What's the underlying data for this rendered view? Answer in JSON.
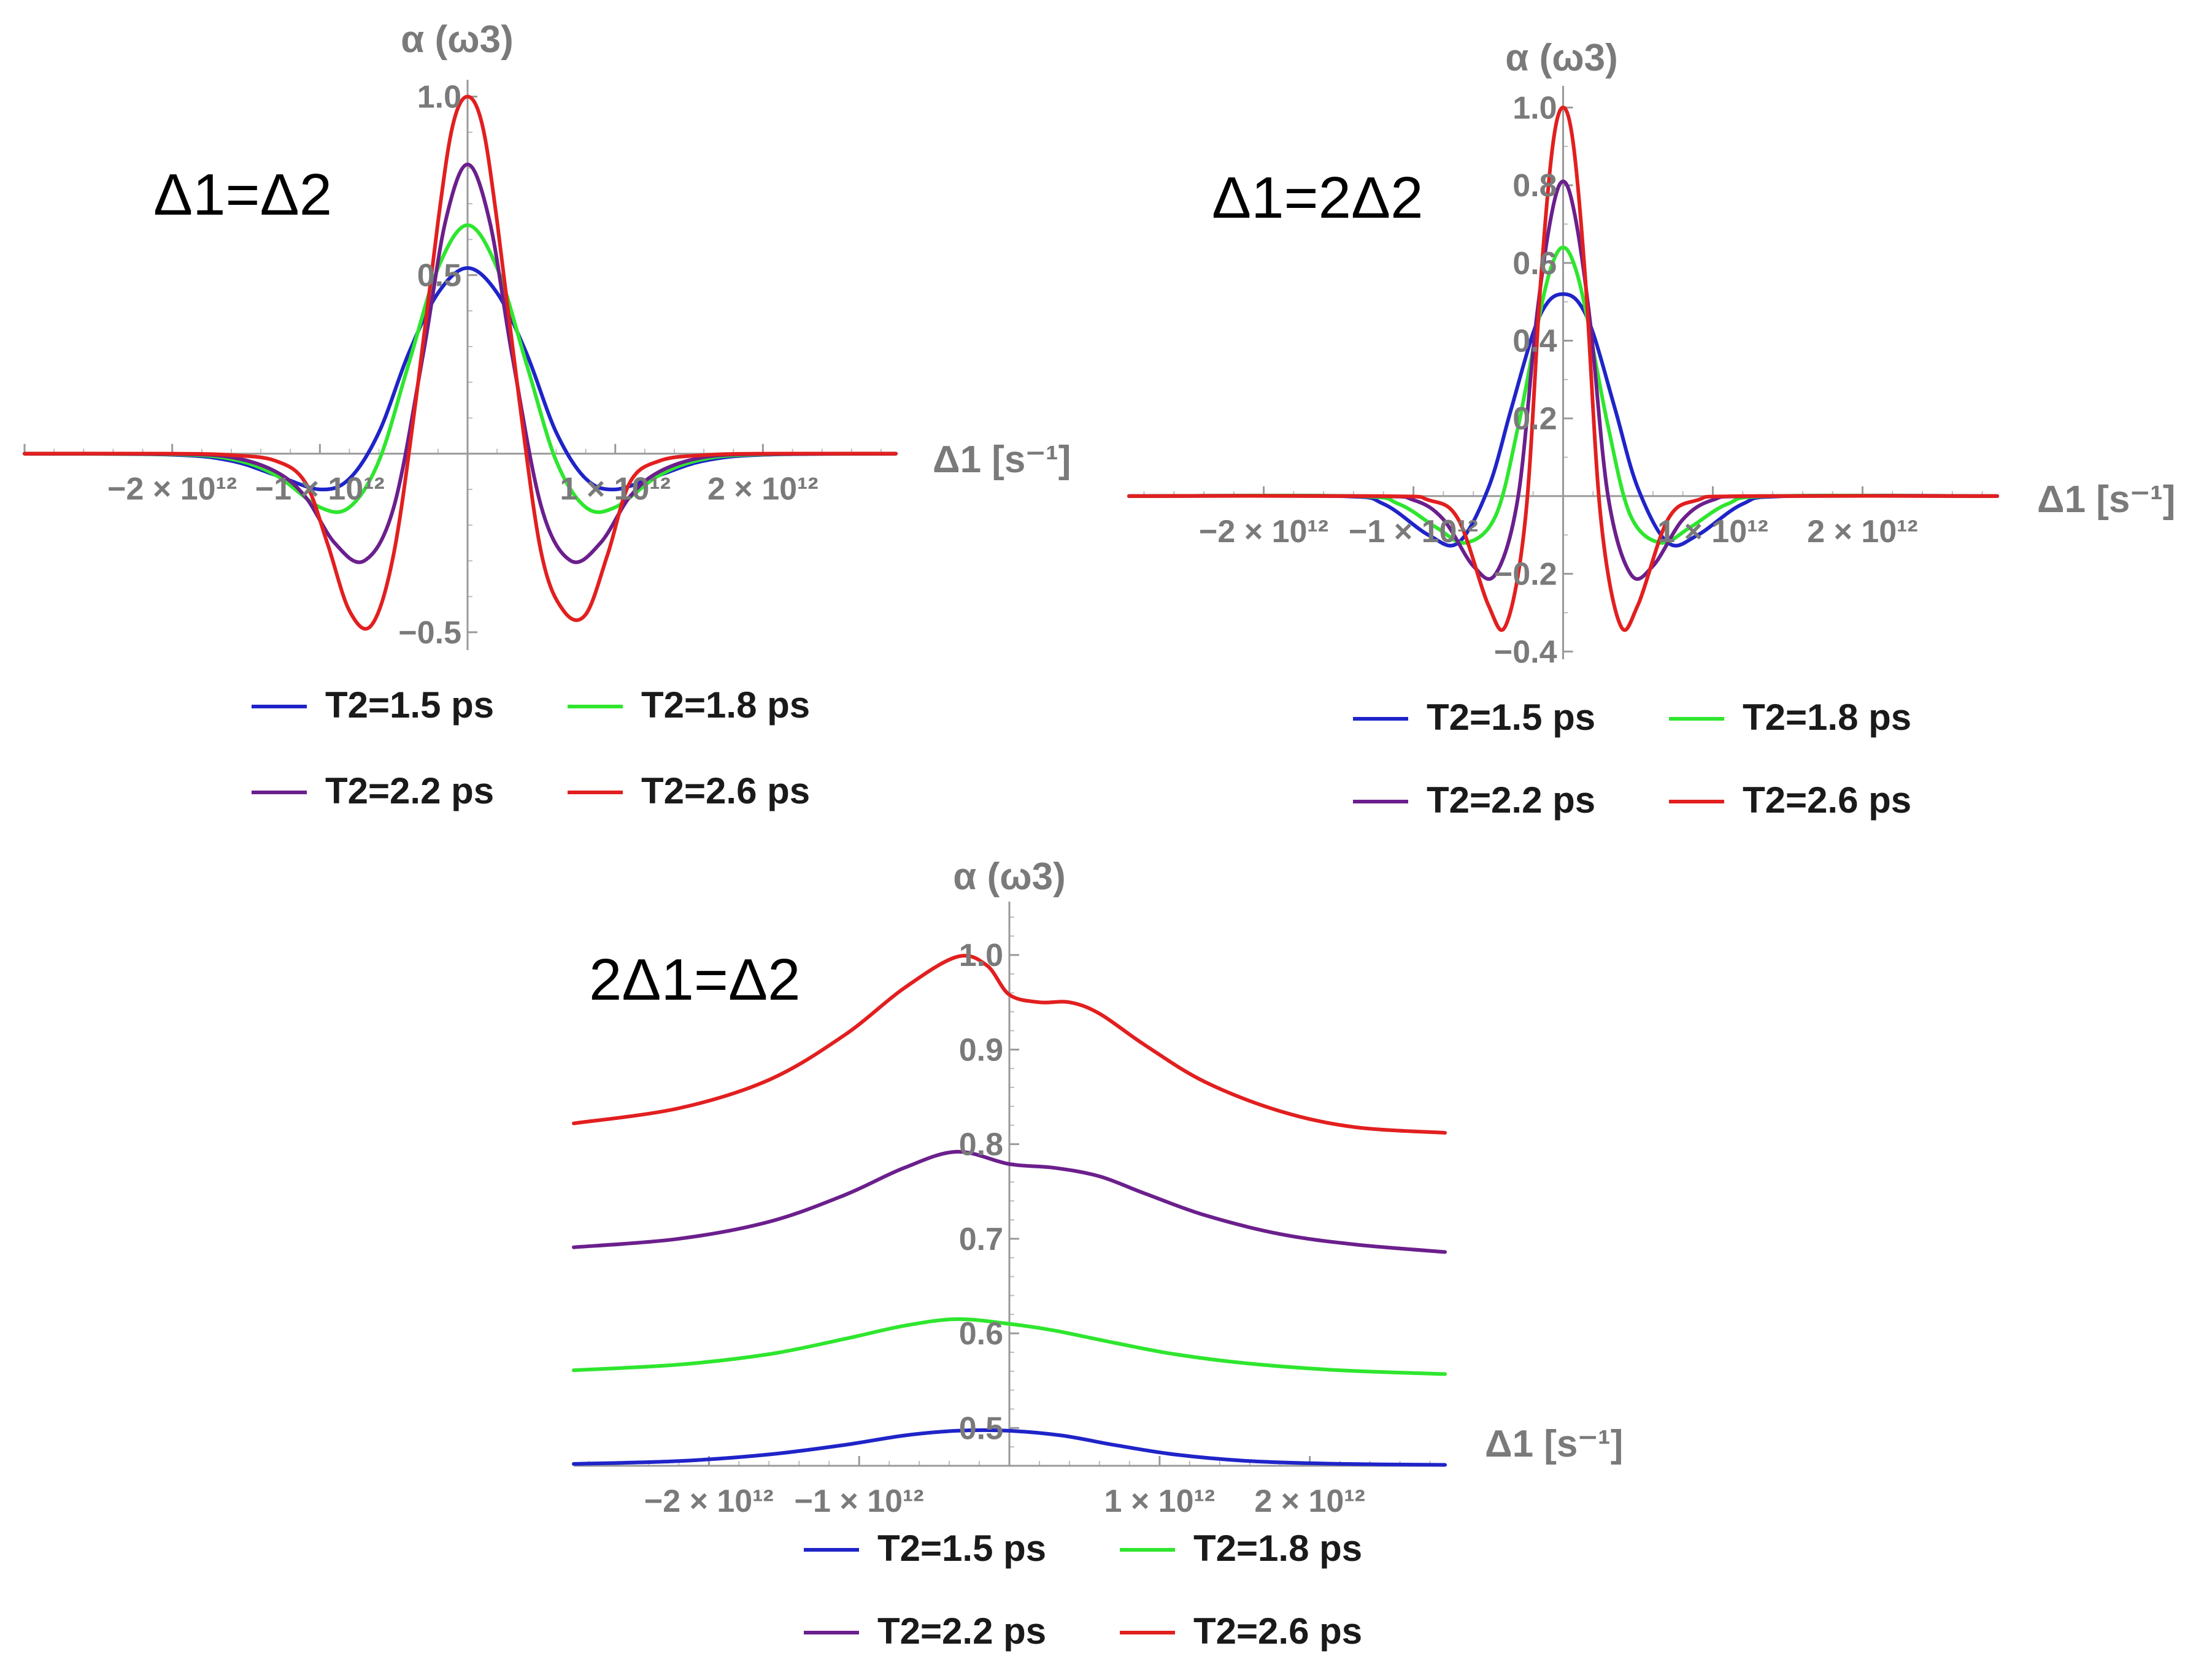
{
  "chart_data": [
    {
      "type": "line",
      "title": "Δ1=Δ2",
      "xlabel": "Δ1 [s⁻¹]",
      "ylabel": "α (ω3)",
      "xlim": [
        -3000000000000.0,
        2900000000000.0
      ],
      "ylim": [
        -0.55,
        1.03
      ],
      "x_ticks": [
        -2000000000000.0,
        -1000000000000.0,
        1000000000000.0,
        2000000000000.0
      ],
      "x_tick_labels": [
        "−2 × 10¹²",
        "−1 × 10¹²",
        "1 × 10¹²",
        "2 × 10¹²"
      ],
      "y_ticks": [
        -0.5,
        0.5,
        1.0
      ],
      "y_tick_labels": [
        "−0.5",
        "0.5",
        "1.0"
      ],
      "legend_position": "bottom",
      "series": [
        {
          "name": "T2=1.5 ps",
          "color": "#1f24c8",
          "x": [
            -3000000000000.0,
            -2000000000000.0,
            -1600000000000.0,
            -1300000000000.0,
            -1000000000000.0,
            -800000000000.0,
            -600000000000.0,
            -400000000000.0,
            -200000000000.0,
            0,
            200000000000.0,
            400000000000.0,
            600000000000.0,
            800000000000.0,
            1000000000000.0,
            1300000000000.0,
            1600000000000.0,
            2000000000000.0,
            2900000000000.0
          ],
          "values": [
            0,
            -0.003,
            -0.02,
            -0.06,
            -0.1,
            -0.07,
            0.06,
            0.28,
            0.45,
            0.52,
            0.45,
            0.28,
            0.06,
            -0.07,
            -0.1,
            -0.06,
            -0.02,
            -0.003,
            0
          ]
        },
        {
          "name": "T2=1.8 ps",
          "color": "#2ee62e",
          "x": [
            -3000000000000.0,
            -2000000000000.0,
            -1600000000000.0,
            -1300000000000.0,
            -1000000000000.0,
            -800000000000.0,
            -600000000000.0,
            -400000000000.0,
            -200000000000.0,
            0,
            200000000000.0,
            400000000000.0,
            600000000000.0,
            800000000000.0,
            1000000000000.0,
            1300000000000.0,
            1600000000000.0,
            2000000000000.0,
            2900000000000.0
          ],
          "values": [
            0,
            -0.002,
            -0.015,
            -0.06,
            -0.15,
            -0.15,
            -0.02,
            0.25,
            0.52,
            0.64,
            0.52,
            0.25,
            -0.02,
            -0.15,
            -0.15,
            -0.06,
            -0.015,
            -0.002,
            0
          ]
        },
        {
          "name": "T2=2.2 ps",
          "color": "#6b1f8c",
          "x": [
            -3000000000000.0,
            -2000000000000.0,
            -1600000000000.0,
            -1300000000000.0,
            -1100000000000.0,
            -900000000000.0,
            -700000000000.0,
            -500000000000.0,
            -300000000000.0,
            -150000000000.0,
            0,
            150000000000.0,
            300000000000.0,
            500000000000.0,
            700000000000.0,
            900000000000.0,
            1100000000000.0,
            1300000000000.0,
            1600000000000.0,
            2000000000000.0,
            2900000000000.0
          ],
          "values": [
            0,
            -0.001,
            -0.01,
            -0.05,
            -0.12,
            -0.25,
            -0.3,
            -0.15,
            0.28,
            0.65,
            0.81,
            0.65,
            0.28,
            -0.15,
            -0.3,
            -0.25,
            -0.12,
            -0.05,
            -0.01,
            -0.001,
            0
          ]
        },
        {
          "name": "T2=2.6 ps",
          "color": "#e21f1f",
          "x": [
            -3000000000000.0,
            -2000000000000.0,
            -1600000000000.0,
            -1300000000000.0,
            -1100000000000.0,
            -950000000000.0,
            -800000000000.0,
            -650000000000.0,
            -500000000000.0,
            -350000000000.0,
            -200000000000.0,
            -100000000000.0,
            0,
            100000000000.0,
            200000000000.0,
            350000000000.0,
            500000000000.0,
            650000000000.0,
            800000000000.0,
            950000000000.0,
            1100000000000.0,
            1300000000000.0,
            1600000000000.0,
            2000000000000.0,
            2900000000000.0
          ],
          "values": [
            0,
            0,
            -0.004,
            -0.02,
            -0.08,
            -0.25,
            -0.44,
            -0.48,
            -0.28,
            0.15,
            0.65,
            0.92,
            1.0,
            0.92,
            0.65,
            0.15,
            -0.28,
            -0.44,
            -0.45,
            -0.28,
            -0.08,
            -0.02,
            -0.004,
            0,
            0
          ]
        }
      ]
    },
    {
      "type": "line",
      "title": "Δ1=2Δ2",
      "xlabel": "Δ1 [s⁻¹]",
      "ylabel": "α (ω3)",
      "xlim": [
        -2900000000000.0,
        2900000000000.0
      ],
      "ylim": [
        -0.42,
        1.04
      ],
      "x_ticks": [
        -2000000000000.0,
        -1000000000000.0,
        1000000000000.0,
        2000000000000.0
      ],
      "x_tick_labels": [
        "−2 × 10¹²",
        "−1 × 10¹²",
        "1 × 10¹²",
        "2 × 10¹²"
      ],
      "y_ticks": [
        -0.4,
        -0.2,
        0.2,
        0.4,
        0.6,
        0.8,
        1.0
      ],
      "y_tick_labels": [
        "−0.4",
        "−0.2",
        "0.2",
        "0.4",
        "0.6",
        "0.8",
        "1.0"
      ],
      "legend_position": "bottom",
      "series": [
        {
          "name": "T2=1.5 ps",
          "color": "#1f24c8",
          "x": [
            -2900000000000.0,
            -1500000000000.0,
            -1200000000000.0,
            -900000000000.0,
            -700000000000.0,
            -500000000000.0,
            -350000000000.0,
            -200000000000.0,
            -100000000000.0,
            0,
            100000000000.0,
            200000000000.0,
            350000000000.0,
            500000000000.0,
            700000000000.0,
            900000000000.0,
            1200000000000.0,
            1500000000000.0,
            2900000000000.0
          ],
          "values": [
            0,
            0,
            -0.02,
            -0.1,
            -0.12,
            0.02,
            0.22,
            0.42,
            0.5,
            0.52,
            0.5,
            0.42,
            0.22,
            0.02,
            -0.12,
            -0.1,
            -0.02,
            0,
            0
          ]
        },
        {
          "name": "T2=1.8 ps",
          "color": "#2ee62e",
          "x": [
            -2900000000000.0,
            -1400000000000.0,
            -1100000000000.0,
            -850000000000.0,
            -650000000000.0,
            -450000000000.0,
            -300000000000.0,
            -150000000000.0,
            -70000000000.0,
            0,
            70000000000.0,
            150000000000.0,
            300000000000.0,
            450000000000.0,
            650000000000.0,
            850000000000.0,
            1100000000000.0,
            1400000000000.0,
            2900000000000.0
          ],
          "values": [
            0,
            0,
            -0.02,
            -0.08,
            -0.12,
            -0.05,
            0.18,
            0.48,
            0.6,
            0.64,
            0.6,
            0.48,
            0.18,
            -0.05,
            -0.12,
            -0.08,
            -0.02,
            0,
            0
          ]
        },
        {
          "name": "T2=2.2 ps",
          "color": "#6b1f8c",
          "x": [
            -2900000000000.0,
            -1300000000000.0,
            -1000000000000.0,
            -800000000000.0,
            -600000000000.0,
            -450000000000.0,
            -300000000000.0,
            -180000000000.0,
            -80000000000.0,
            0,
            80000000000.0,
            180000000000.0,
            300000000000.0,
            450000000000.0,
            600000000000.0,
            800000000000.0,
            1000000000000.0,
            1300000000000.0,
            2900000000000.0
          ],
          "values": [
            0,
            0,
            -0.01,
            -0.06,
            -0.18,
            -0.2,
            0.0,
            0.45,
            0.72,
            0.81,
            0.72,
            0.45,
            0.0,
            -0.2,
            -0.18,
            -0.06,
            -0.01,
            0,
            0
          ]
        },
        {
          "name": "T2=2.6 ps",
          "color": "#e21f1f",
          "x": [
            -2900000000000.0,
            -1200000000000.0,
            -900000000000.0,
            -700000000000.0,
            -500000000000.0,
            -380000000000.0,
            -250000000000.0,
            -150000000000.0,
            -70000000000.0,
            0,
            70000000000.0,
            150000000000.0,
            250000000000.0,
            380000000000.0,
            500000000000.0,
            700000000000.0,
            900000000000.0,
            1200000000000.0,
            2900000000000.0
          ],
          "values": [
            0,
            0,
            -0.01,
            -0.06,
            -0.28,
            -0.33,
            -0.05,
            0.55,
            0.9,
            1.0,
            0.9,
            0.55,
            -0.05,
            -0.33,
            -0.28,
            -0.06,
            -0.01,
            0,
            0
          ]
        }
      ]
    },
    {
      "type": "line",
      "title": "2Δ1=Δ2",
      "xlabel": "Δ1 [s⁻¹]",
      "ylabel": "α (ω3)",
      "xlim": [
        -2900000000000.0,
        2900000000000.0
      ],
      "ylim": [
        0.46,
        1.05
      ],
      "x_ticks": [
        -2000000000000.0,
        -1000000000000.0,
        1000000000000.0,
        2000000000000.0
      ],
      "x_tick_labels": [
        "−2 × 10¹²",
        "−1 × 10¹²",
        "1 × 10¹²",
        "2 × 10¹²"
      ],
      "y_ticks": [
        0.5,
        0.6,
        0.7,
        0.8,
        0.9,
        1.0
      ],
      "y_tick_labels": [
        "0.5",
        "0.6",
        "0.7",
        "0.8",
        "0.9",
        "1.0"
      ],
      "legend_position": "bottom",
      "series": [
        {
          "name": "T2=1.5 ps",
          "color": "#1f24c8",
          "x": [
            -2900000000000.0,
            -2200000000000.0,
            -1600000000000.0,
            -1100000000000.0,
            -700000000000.0,
            -350000000000.0,
            0,
            350000000000.0,
            700000000000.0,
            1100000000000.0,
            1600000000000.0,
            2200000000000.0,
            2900000000000.0
          ],
          "values": [
            0.462,
            0.465,
            0.472,
            0.482,
            0.492,
            0.497,
            0.497,
            0.492,
            0.482,
            0.472,
            0.465,
            0.462,
            0.461
          ]
        },
        {
          "name": "T2=1.8 ps",
          "color": "#2ee62e",
          "x": [
            -2900000000000.0,
            -2200000000000.0,
            -1600000000000.0,
            -1100000000000.0,
            -700000000000.0,
            -350000000000.0,
            0,
            300000000000.0,
            700000000000.0,
            1100000000000.0,
            1600000000000.0,
            2200000000000.0,
            2900000000000.0
          ],
          "values": [
            0.561,
            0.567,
            0.578,
            0.594,
            0.608,
            0.615,
            0.61,
            0.603,
            0.59,
            0.578,
            0.568,
            0.561,
            0.557
          ]
        },
        {
          "name": "T2=2.2 ps",
          "color": "#6b1f8c",
          "x": [
            -2900000000000.0,
            -2200000000000.0,
            -1600000000000.0,
            -1100000000000.0,
            -700000000000.0,
            -350000000000.0,
            0,
            300000000000.0,
            600000000000.0,
            900000000000.0,
            1300000000000.0,
            1800000000000.0,
            2300000000000.0,
            2900000000000.0
          ],
          "values": [
            0.691,
            0.7,
            0.718,
            0.746,
            0.775,
            0.792,
            0.779,
            0.775,
            0.766,
            0.748,
            0.725,
            0.705,
            0.694,
            0.686
          ]
        },
        {
          "name": "T2=2.6 ps",
          "color": "#e21f1f",
          "x": [
            -2900000000000.0,
            -2200000000000.0,
            -1600000000000.0,
            -1100000000000.0,
            -700000000000.0,
            -350000000000.0,
            -150000000000.0,
            0,
            200000000000.0,
            400000000000.0,
            600000000000.0,
            900000000000.0,
            1300000000000.0,
            1800000000000.0,
            2300000000000.0,
            2900000000000.0
          ],
          "values": [
            0.822,
            0.838,
            0.868,
            0.915,
            0.965,
            0.998,
            0.989,
            0.958,
            0.95,
            0.95,
            0.938,
            0.905,
            0.866,
            0.835,
            0.818,
            0.812
          ]
        }
      ]
    }
  ]
}
